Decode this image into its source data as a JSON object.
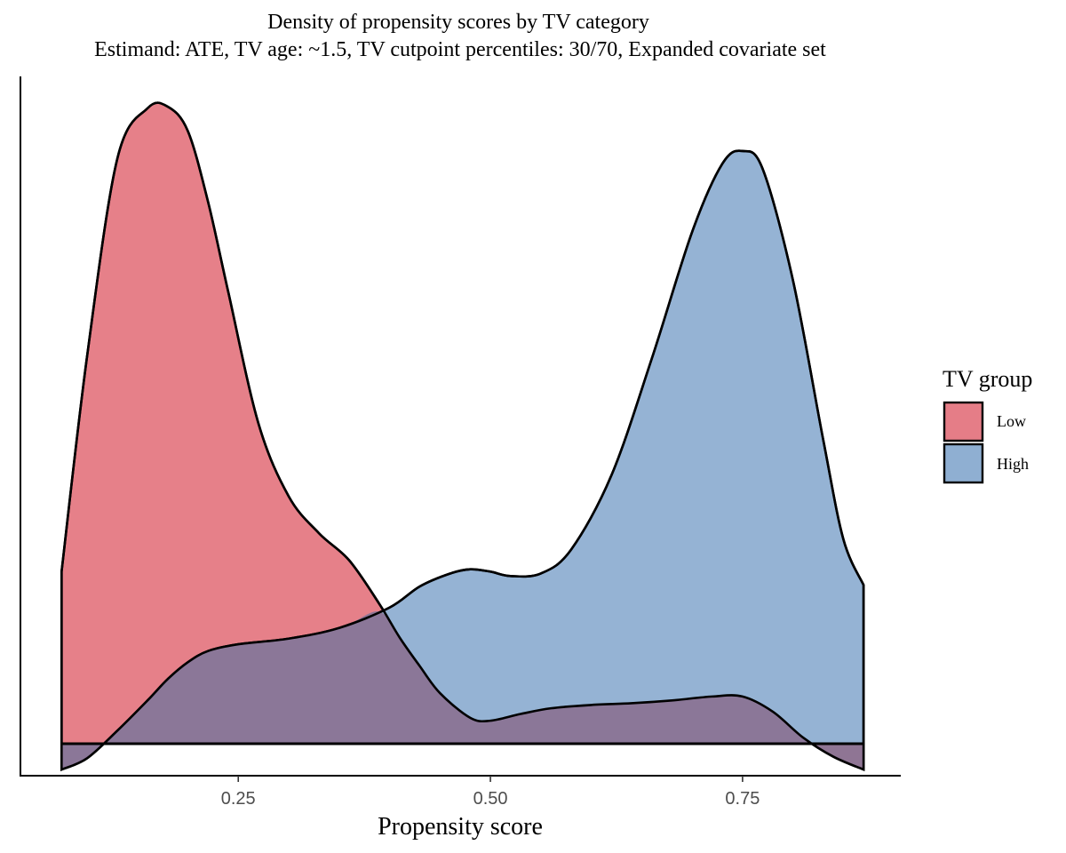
{
  "chart_data": {
    "type": "area",
    "title": "Density of propensity scores by TV category",
    "subtitle": "Estimand: ATE, TV age: ~1.5, TV cutpoint percentiles: 30/70, Expanded covariate set",
    "xlabel": "Propensity score",
    "ylabel": "",
    "xlim": [
      0.034,
      0.906
    ],
    "ylim": [
      0,
      1
    ],
    "x_ticks": [
      0.25,
      0.5,
      0.75
    ],
    "x_tick_labels": [
      "0.25",
      "0.50",
      "0.75"
    ],
    "y_ticks": [],
    "grid": false,
    "legend": {
      "title": "TV group",
      "position": "right",
      "entries": [
        "Low",
        "High"
      ]
    },
    "series": [
      {
        "name": "Low",
        "color": "#E57D87",
        "opacity": 0.98,
        "x": [
          0.0748,
          0.1,
          0.13,
          0.16,
          0.18,
          0.2,
          0.22,
          0.24,
          0.27,
          0.3,
          0.33,
          0.36,
          0.39,
          0.41,
          0.43,
          0.45,
          0.48,
          0.5,
          0.53,
          0.56,
          0.6,
          0.64,
          0.68,
          0.72,
          0.75,
          0.78,
          0.81,
          0.84,
          0.87
        ],
        "y": [
          0.2703,
          0.6071,
          0.9179,
          0.9974,
          1.0,
          0.9617,
          0.8508,
          0.7096,
          0.5026,
          0.3883,
          0.3304,
          0.2878,
          0.2191,
          0.1667,
          0.1217,
          0.0794,
          0.0406,
          0.0361,
          0.0467,
          0.0556,
          0.0608,
          0.0635,
          0.0679,
          0.0741,
          0.0741,
          0.0503,
          0.0097,
          -0.0203,
          -0.0406
        ]
      },
      {
        "name": "High",
        "color": "#8FAFD2",
        "opacity": 0.95,
        "x": [
          0.0748,
          0.1,
          0.13,
          0.16,
          0.18,
          0.2,
          0.22,
          0.25,
          0.3,
          0.35,
          0.4,
          0.43,
          0.46,
          0.48,
          0.5,
          0.52,
          0.55,
          0.58,
          0.62,
          0.66,
          0.7,
          0.73,
          0.75,
          0.77,
          0.8,
          0.83,
          0.85,
          0.87
        ],
        "y": [
          -0.0406,
          -0.0229,
          0.0203,
          0.0679,
          0.1014,
          0.1279,
          0.1455,
          0.1561,
          0.1649,
          0.1817,
          0.2137,
          0.2469,
          0.2671,
          0.2738,
          0.2701,
          0.2632,
          0.2672,
          0.3046,
          0.4213,
          0.6044,
          0.8033,
          0.9104,
          0.9303,
          0.902,
          0.7273,
          0.477,
          0.3208,
          0.2491
        ]
      }
    ]
  }
}
